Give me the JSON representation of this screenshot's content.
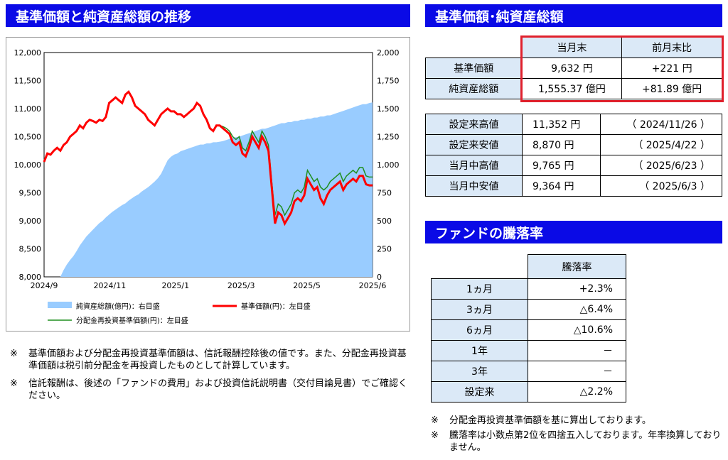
{
  "chart_section": {
    "title": "基準価額と純資産総額の推移"
  },
  "chart_data": {
    "type": "line",
    "title": "基準価額と純資産総額の推移",
    "x_ticks": [
      "2024/9",
      "2024/11",
      "2025/1",
      "2025/3",
      "2025/5",
      "2025/6"
    ],
    "y_left_ticks": [
      "12,000",
      "11,500",
      "11,000",
      "10,500",
      "10,000",
      "9,500",
      "9,000",
      "8,500",
      "8,000"
    ],
    "y_right_ticks": [
      "2,000",
      "1,750",
      "1,500",
      "1,250",
      "1,000",
      "750",
      "500",
      "250",
      "0"
    ],
    "ylim_left": [
      8000,
      12000
    ],
    "ylim_right": [
      0,
      2000
    ],
    "legend_placement": "bottom",
    "series": [
      {
        "name": "純資産総額(億円)：右目盛",
        "axis": "right",
        "kind": "area",
        "color": "#99ccff",
        "values": [
          0,
          0,
          0,
          0,
          0,
          0,
          60,
          110,
          150,
          185,
          230,
          280,
          320,
          360,
          390,
          420,
          450,
          480,
          500,
          530,
          555,
          580,
          600,
          620,
          640,
          655,
          680,
          700,
          720,
          735,
          760,
          780,
          800,
          825,
          850,
          880,
          920,
          980,
          1040,
          1070,
          1090,
          1100,
          1120,
          1130,
          1140,
          1150,
          1160,
          1170,
          1180,
          1180,
          1190,
          1190,
          1200,
          1200,
          1205,
          1210,
          1220,
          1230,
          1240,
          1245,
          1250,
          1260,
          1270,
          1280,
          1290,
          1300,
          1310,
          1320,
          1320,
          1330,
          1340,
          1350,
          1360,
          1370,
          1370,
          1380,
          1380,
          1390,
          1390,
          1400,
          1400,
          1410,
          1410,
          1420,
          1420,
          1430,
          1430,
          1440,
          1440,
          1450,
          1460,
          1470,
          1480,
          1490,
          1500,
          1510,
          1520,
          1530,
          1540,
          1540,
          1550,
          1555
        ]
      },
      {
        "name": "分配金再投資基準価額(円)：左目盛",
        "axis": "left",
        "kind": "line",
        "color": "#1f8f1f",
        "values": [
          10050,
          10200,
          10180,
          10250,
          10300,
          10250,
          10350,
          10400,
          10500,
          10550,
          10600,
          10700,
          10650,
          10750,
          10800,
          10780,
          10750,
          10800,
          10780,
          10850,
          11100,
          11150,
          11200,
          11150,
          11100,
          11250,
          11300,
          11200,
          11050,
          11000,
          10950,
          10900,
          10800,
          10750,
          10700,
          10800,
          10900,
          10950,
          11000,
          10950,
          10950,
          10900,
          10900,
          10850,
          10900,
          10950,
          11000,
          11100,
          11050,
          10900,
          10800,
          10650,
          10600,
          10700,
          10700,
          10680,
          10650,
          10600,
          10500,
          10450,
          10500,
          10300,
          10250,
          10400,
          10600,
          10500,
          10400,
          10600,
          10500,
          10350,
          9700,
          9100,
          9300,
          9250,
          9100,
          9200,
          9300,
          9500,
          9550,
          9500,
          9600,
          9900,
          9800,
          9700,
          9750,
          9600,
          9550,
          9600,
          9700,
          9750,
          9800,
          9850,
          9700,
          9800,
          9850,
          9900,
          9850,
          9950,
          9950,
          9800,
          9780,
          9780
        ]
      },
      {
        "name": "基準価額(円)：左目盛",
        "axis": "left",
        "kind": "line",
        "color": "#ff0000",
        "values": [
          10050,
          10200,
          10180,
          10250,
          10300,
          10250,
          10350,
          10400,
          10500,
          10550,
          10600,
          10700,
          10650,
          10750,
          10800,
          10780,
          10750,
          10800,
          10780,
          10850,
          11100,
          11150,
          11200,
          11150,
          11100,
          11250,
          11300,
          11200,
          11050,
          11000,
          10950,
          10900,
          10800,
          10750,
          10700,
          10800,
          10900,
          10950,
          11000,
          10950,
          10950,
          10900,
          10900,
          10850,
          10900,
          10950,
          11000,
          11100,
          11050,
          10900,
          10800,
          10650,
          10600,
          10700,
          10700,
          10650,
          10600,
          10550,
          10400,
          10350,
          10400,
          10200,
          10150,
          10300,
          10500,
          10400,
          10300,
          10500,
          10400,
          10250,
          9600,
          8950,
          9150,
          9100,
          8950,
          9050,
          9150,
          9350,
          9400,
          9350,
          9450,
          9750,
          9650,
          9550,
          9600,
          9400,
          9300,
          9450,
          9550,
          9600,
          9650,
          9700,
          9550,
          9650,
          9700,
          9750,
          9700,
          9800,
          9800,
          9650,
          9632,
          9632
        ]
      }
    ]
  },
  "nav_section": {
    "title": "基準価額･純資産総額",
    "col_current": "当月末",
    "col_change": "前月末比",
    "rows": [
      {
        "label": "基準価額",
        "value": "9,632 円",
        "change": "+221 円"
      },
      {
        "label": "純資産総額",
        "value": "1,555.37 億円",
        "change": "+81.89 億円"
      }
    ],
    "stats": [
      {
        "label": "設定来高値",
        "value": "11,352 円",
        "date": "（ 2024/11/26 ）"
      },
      {
        "label": "設定来安値",
        "value": "8,870 円",
        "date": "（ 2025/4/22 ）"
      },
      {
        "label": "当月中高値",
        "value": "9,765 円",
        "date": "（ 2025/6/23 ）"
      },
      {
        "label": "当月中安値",
        "value": "9,364 円",
        "date": "（ 2025/6/3 ）"
      }
    ],
    "highlight_color": "#e0202c"
  },
  "perf_section": {
    "title": "ファンドの騰落率",
    "header": "騰落率",
    "rows": [
      {
        "label": "1ヵ月",
        "value": "+2.3%"
      },
      {
        "label": "3ヵ月",
        "value": "△6.4%"
      },
      {
        "label": "6ヵ月",
        "value": "△10.6%"
      },
      {
        "label": "1年",
        "value": "－"
      },
      {
        "label": "3年",
        "value": "－"
      },
      {
        "label": "設定来",
        "value": "△2.2%"
      }
    ]
  },
  "notes_left": [
    {
      "mark": "※",
      "text": "基準価額および分配金再投資基準価額は、信託報酬控除後の値です。また、分配金再投資基準価額は税引前分配金を再投資したものとして計算しています。"
    },
    {
      "mark": "※",
      "text": "信託報酬は、後述の「ファンドの費用」および投資信託説明書（交付目論見書）でご確認ください。"
    }
  ],
  "notes_right": [
    {
      "mark": "※",
      "text": "分配金再投資基準価額を基に算出しております。"
    },
    {
      "mark": "※",
      "text": "騰落率は小数点第2位を四捨五入しております。年率換算しておりません。"
    }
  ],
  "colors": {
    "band": "#0a0ae6",
    "table_header": "#dbe9f7"
  }
}
